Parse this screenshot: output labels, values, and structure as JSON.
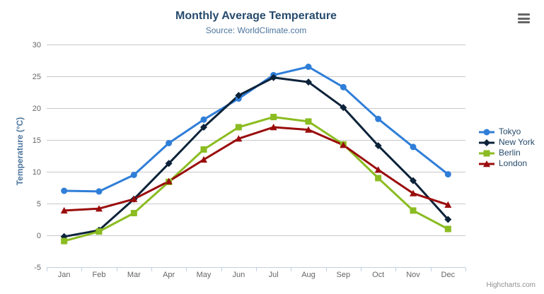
{
  "credits": "Highcharts.com",
  "theme": {
    "background": "#ffffff",
    "title_color": "#274b6d",
    "subtitle_color": "#4d759e",
    "axis_title_color": "#4d759e",
    "axis_label_color": "#666666",
    "grid_color": "#c8c8c8",
    "x_axis_line_color": "#c0d0e0",
    "tick_color": "#c0d0e0",
    "legend_text_color": "#274b6d",
    "credits_color": "#909090",
    "menu_icon_color": "#666666"
  },
  "chart_data": {
    "type": "line",
    "title": "Monthly Average Temperature",
    "subtitle": "Source: WorldClimate.com",
    "xlabel": "",
    "ylabel": "Temperature (°C)",
    "ylim": [
      -5,
      30
    ],
    "y_ticks": [
      -5,
      0,
      5,
      10,
      15,
      20,
      25,
      30
    ],
    "grid": true,
    "legend_position": "right-middle-vertical",
    "categories": [
      "Jan",
      "Feb",
      "Mar",
      "Apr",
      "May",
      "Jun",
      "Jul",
      "Aug",
      "Sep",
      "Oct",
      "Nov",
      "Dec"
    ],
    "series": [
      {
        "name": "Tokyo",
        "color": "#2f7ed8",
        "marker": "circle",
        "values": [
          7.0,
          6.9,
          9.5,
          14.5,
          18.2,
          21.5,
          25.2,
          26.5,
          23.3,
          18.3,
          13.9,
          9.6
        ]
      },
      {
        "name": "New York",
        "color": "#0d233a",
        "marker": "diamond",
        "values": [
          -0.2,
          0.8,
          5.7,
          11.3,
          17.0,
          22.0,
          24.8,
          24.1,
          20.1,
          14.1,
          8.6,
          2.5
        ]
      },
      {
        "name": "Berlin",
        "color": "#8bbc21",
        "marker": "square",
        "values": [
          -0.9,
          0.6,
          3.5,
          8.4,
          13.5,
          17.0,
          18.6,
          17.9,
          14.3,
          9.0,
          3.9,
          1.0
        ]
      },
      {
        "name": "London",
        "color": "#9a0c0c",
        "marker": "triangle",
        "values": [
          3.9,
          4.2,
          5.7,
          8.5,
          11.9,
          15.2,
          17.0,
          16.6,
          14.2,
          10.3,
          6.6,
          4.8
        ]
      }
    ]
  }
}
